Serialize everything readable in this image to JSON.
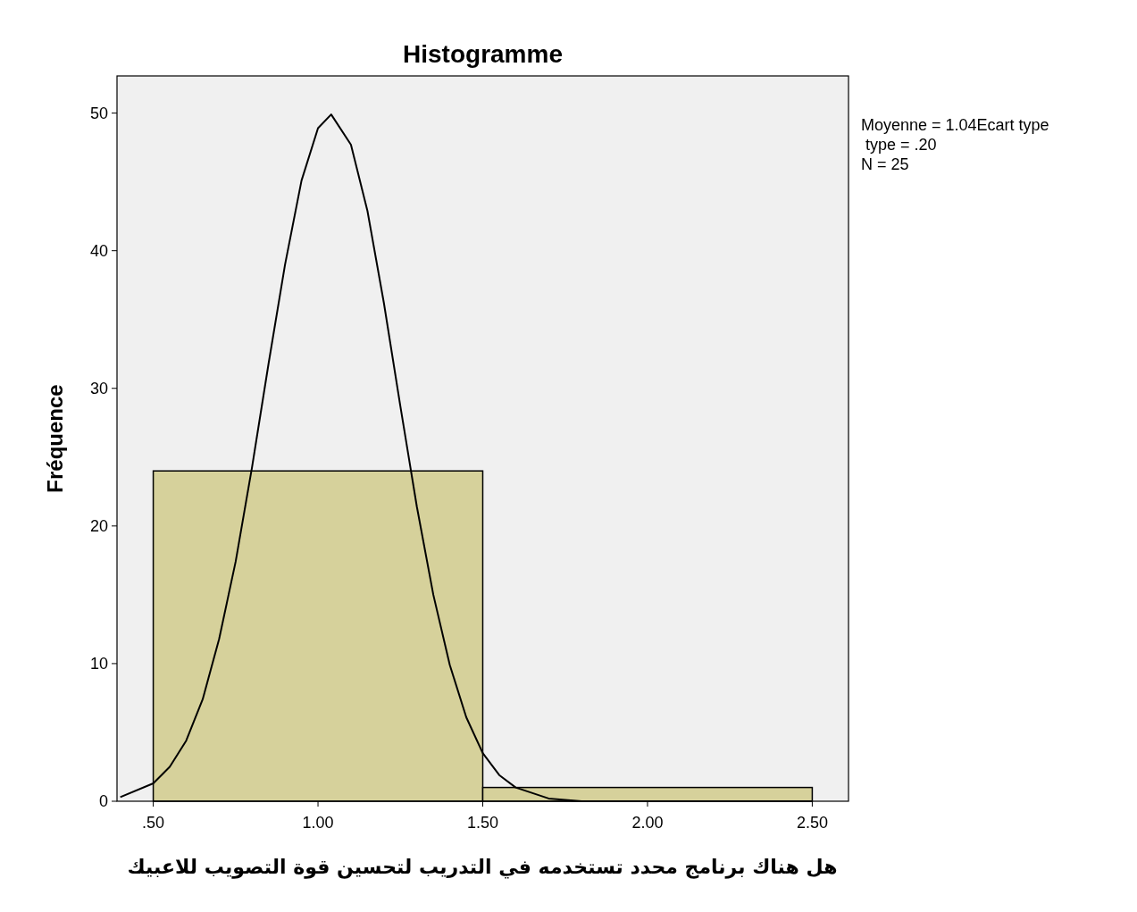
{
  "chart_data": {
    "type": "histogram",
    "title": "Histogramme",
    "xlabel": "هل هناك برنامج محدد تستخدمه في التدريب لتحسين قوة التصويب للاعبيك",
    "ylabel": "Fréquence",
    "annotations": [
      "Moyenne = 1.04Ecart type",
      " type = .20",
      "N = 25"
    ],
    "series": [
      {
        "bins": [
          0.5,
          1.5,
          2.5
        ],
        "values": [
          24,
          1
        ],
        "color": "#d6d19b"
      },
      {
        "type": "line",
        "color": "#000000",
        "x": [
          0.4,
          0.5,
          0.55,
          0.6,
          0.65,
          0.7,
          0.75,
          0.8,
          0.85,
          0.9,
          0.95,
          1.0,
          1.04,
          1.1,
          1.15,
          1.2,
          1.25,
          1.3,
          1.35,
          1.4,
          1.45,
          1.5,
          1.55,
          1.6,
          1.7,
          1.8,
          2.0,
          2.5
        ],
        "values": [
          0.3,
          1.3,
          2.5,
          4.4,
          7.4,
          11.8,
          17.4,
          24.3,
          31.8,
          39.0,
          45.1,
          48.9,
          49.9,
          47.7,
          42.9,
          36.2,
          28.7,
          21.4,
          15.0,
          9.9,
          6.1,
          3.5,
          1.9,
          1.0,
          0.2,
          0.0,
          0.0,
          0.0
        ]
      }
    ],
    "xlim": [
      0.39,
      2.61
    ],
    "ylim": [
      0,
      52.7
    ],
    "xticks": [
      {
        "value": 0.5,
        "label": ".50"
      },
      {
        "value": 1.0,
        "label": "1.00"
      },
      {
        "value": 1.5,
        "label": "1.50"
      },
      {
        "value": 2.0,
        "label": "2.00"
      },
      {
        "value": 2.5,
        "label": "2.50"
      }
    ],
    "yticks": [
      0,
      10,
      20,
      30,
      40,
      50
    ]
  }
}
